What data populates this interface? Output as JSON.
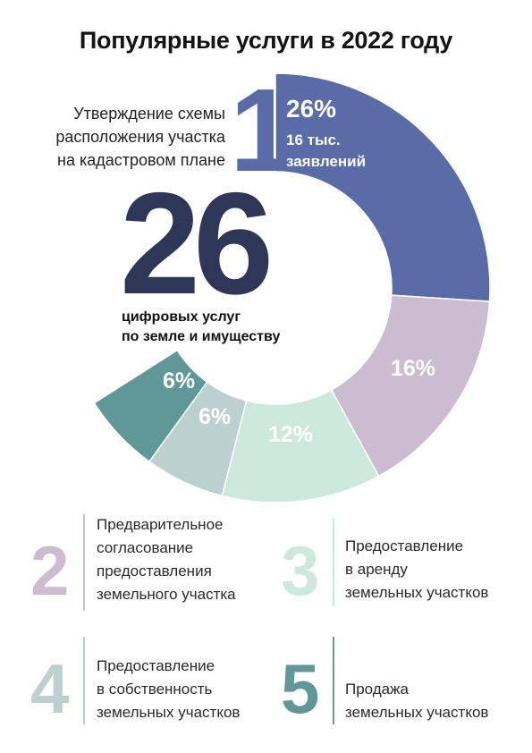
{
  "title": "Популярные услуги в 2022 году",
  "center": {
    "number": "26",
    "subtitle_line1": "цифровых услуг",
    "subtitle_line2": "по земле и имуществу"
  },
  "top_service": {
    "rank": "1",
    "label_line1": "Утверждение схемы",
    "label_line2": "расположения участка",
    "label_line3": "на кадастровом плане",
    "percent": "26%",
    "count_line1": "16 тыс.",
    "count_line2": "заявлений"
  },
  "slice_labels": [
    "26%",
    "16%",
    "12%",
    "6%",
    "6%"
  ],
  "services": [
    {
      "rank": "2",
      "line1": "Предварительное",
      "line2": "согласование",
      "line3": "предоставления",
      "line4": "земельного участка"
    },
    {
      "rank": "3",
      "line1": "Предоставление",
      "line2": "в аренду",
      "line3": "земельных участков"
    },
    {
      "rank": "4",
      "line1": "Предоставление",
      "line2": "в собственность",
      "line3": "земельных участков"
    },
    {
      "rank": "5",
      "line1": "Продажа",
      "line2": "земельных участков"
    }
  ],
  "chart_data": {
    "type": "pie",
    "title": "Популярные услуги в 2022 году",
    "categories": [
      "1",
      "2",
      "3",
      "4",
      "5"
    ],
    "values": [
      26,
      16,
      12,
      6,
      6
    ],
    "unit": "%",
    "colors": [
      "#5a6ca8",
      "#ccbccf",
      "#cde8dd",
      "#bcd0cf",
      "#5f9896"
    ]
  }
}
